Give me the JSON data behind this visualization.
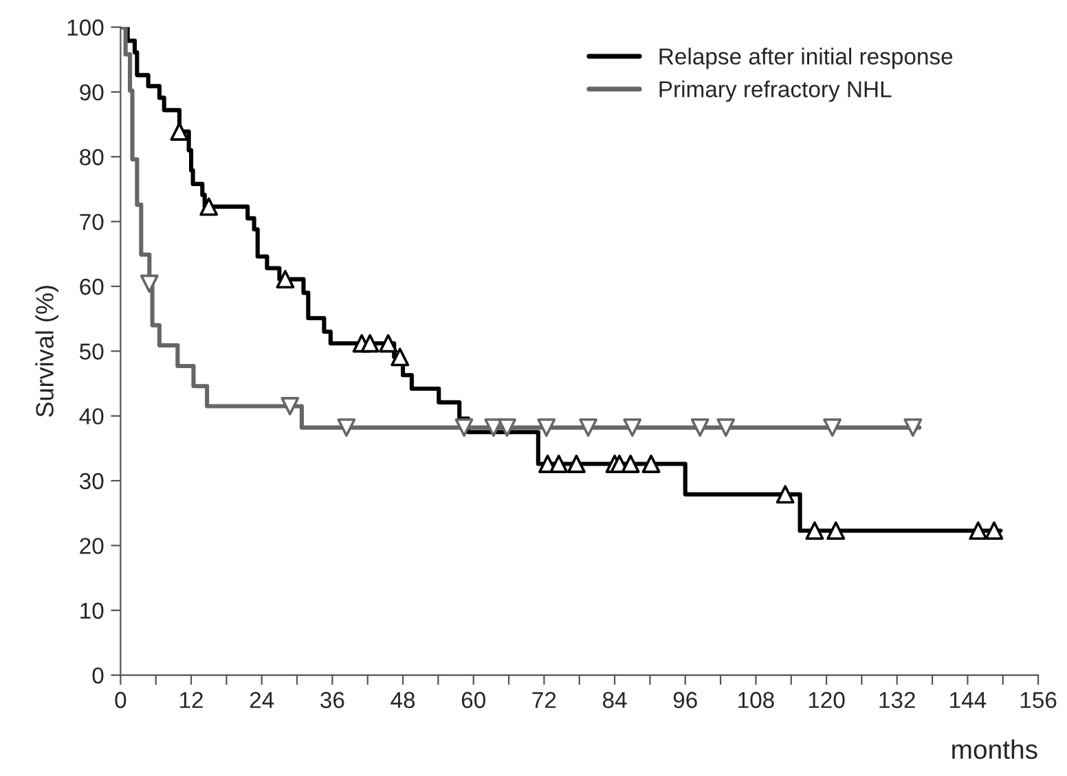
{
  "chart_data": {
    "type": "step",
    "xlabel": "months",
    "ylabel": "Survival (%)",
    "xlim": [
      0,
      156
    ],
    "xticks": [
      0,
      {
        "value": 6,
        "label": null
      },
      12,
      {
        "value": 18,
        "label": null
      },
      24,
      {
        "value": 30,
        "label": null
      },
      36,
      {
        "value": 42,
        "label": null
      },
      48,
      {
        "value": 54,
        "label": null
      },
      60,
      {
        "value": 66,
        "label": null
      },
      72,
      {
        "value": 78,
        "label": null
      },
      84,
      {
        "value": 90,
        "label": null
      },
      96,
      {
        "value": 102,
        "label": null
      },
      108,
      {
        "value": 114,
        "label": null
      },
      120,
      {
        "value": 126,
        "label": null
      },
      132,
      {
        "value": 138,
        "label": null
      },
      144,
      {
        "value": 150,
        "label": null
      },
      156
    ],
    "ylim": [
      0,
      100
    ],
    "yticks": [
      0,
      10,
      20,
      30,
      40,
      50,
      60,
      70,
      80,
      90,
      100
    ],
    "grid": false,
    "legend": "top right",
    "series": [
      {
        "name": "Relapse after initial response",
        "color": "#000000",
        "x": [
          0,
          1.2,
          2.4,
          2.8,
          4.7,
          6.6,
          7.4,
          10,
          11.6,
          12,
          12.3,
          13.9,
          14.3,
          21.6,
          22.7,
          23.3,
          24.9,
          27,
          31.1,
          31.9,
          34.6,
          35.7,
          46.5,
          48,
          49.5,
          54.1,
          57.6,
          59.1,
          71,
          96,
          115.5,
          149.6
        ],
        "values": [
          100,
          97.9,
          96.1,
          92.6,
          90.9,
          89.1,
          87.2,
          83.9,
          81,
          77.9,
          75.8,
          74.1,
          72.3,
          70.5,
          68.8,
          64.6,
          62.8,
          61.1,
          59,
          55.1,
          53,
          51.2,
          49.1,
          46.3,
          44.2,
          42.1,
          39.6,
          37.5,
          32.6,
          27.9,
          22.3,
          22.3
        ]
      },
      {
        "name": "Primary refractory NHL",
        "color": "#666666",
        "x": [
          0,
          0.85,
          1.6,
          2,
          2.8,
          3.5,
          4.9,
          5.4,
          6.6,
          9.7,
          12.4,
          14.7,
          30.8,
          135.8
        ],
        "values": [
          100,
          95.8,
          90.2,
          79.6,
          72.6,
          64.9,
          60.4,
          54,
          50.9,
          47.7,
          44.6,
          41.5,
          38.2,
          38.2
        ]
      },
      {
        "type": "scatter",
        "marker": "triangle",
        "color": "#000000",
        "x": [
          10,
          15,
          28,
          41,
          42.4,
          45.5,
          47.5,
          72.6,
          74.5,
          77.5,
          84,
          84.8,
          86.7,
          90.2,
          113,
          118,
          121.6,
          145.8,
          148.5
        ],
        "values": [
          83.9,
          72.3,
          61.1,
          51.2,
          51.2,
          51.2,
          49.1,
          32.6,
          32.6,
          32.6,
          32.6,
          32.6,
          32.6,
          32.6,
          27.9,
          22.3,
          22.3,
          22.3,
          22.3
        ]
      },
      {
        "type": "scatter",
        "marker": "triangle_down",
        "color": "#666666",
        "x": [
          4.9,
          28.8,
          38.4,
          58.4,
          63.4,
          65.7,
          72.4,
          79.5,
          87,
          98.5,
          102.9,
          121,
          134.7
        ],
        "values": [
          60.4,
          41.5,
          38.2,
          38.2,
          38.2,
          38.2,
          38.2,
          38.2,
          38.2,
          38.2,
          38.2,
          38.2,
          38.2
        ]
      }
    ]
  }
}
